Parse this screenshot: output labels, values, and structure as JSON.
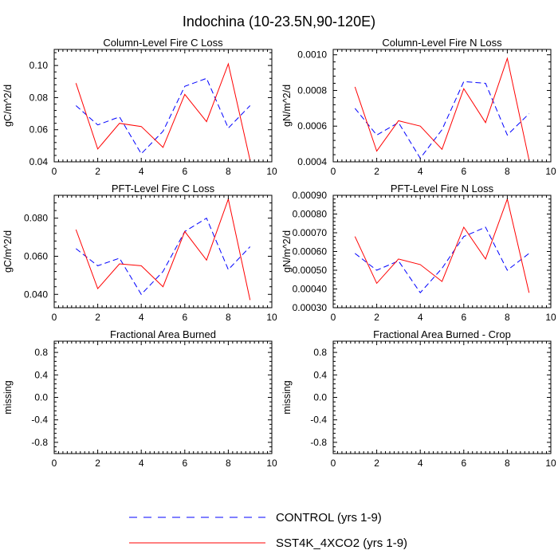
{
  "figure": {
    "title": "Indochina (10-23.5N,90-120E)",
    "colors": {
      "control": "#0000ff",
      "sst4k": "#ff0000",
      "axes": "#000000"
    }
  },
  "legend": [
    {
      "label": "CONTROL (yrs 1-9)",
      "color": "#0000ff",
      "style": "dashed",
      "series": "control"
    },
    {
      "label": "SST4K_4XCO2 (yrs 1-9)",
      "color": "#ff0000",
      "style": "solid",
      "series": "sst4k"
    }
  ],
  "chart_data": [
    {
      "type": "line",
      "title": "Column-Level Fire C Loss",
      "xlabel": "",
      "ylabel": "gC/m^2/d",
      "xlim": [
        0,
        10
      ],
      "ylim": [
        0.04,
        0.11
      ],
      "xticks": [
        0,
        2,
        4,
        6,
        8,
        10
      ],
      "xtick_labels": [
        "0",
        "2",
        "4",
        "6",
        "8",
        "10"
      ],
      "yticks": [
        0.04,
        0.06,
        0.08,
        0.1
      ],
      "ytick_labels": [
        "0.04",
        "0.06",
        "0.08",
        "0.10"
      ],
      "x": [
        1,
        2,
        3,
        4,
        5,
        6,
        7,
        8,
        9
      ],
      "series": [
        {
          "name": "CONTROL (yrs 1-9)",
          "key": "control",
          "values": [
            0.075,
            0.063,
            0.068,
            0.045,
            0.059,
            0.087,
            0.092,
            0.061,
            0.075
          ]
        },
        {
          "name": "SST4K_4XCO2 (yrs 1-9)",
          "key": "sst4k",
          "values": [
            0.089,
            0.048,
            0.064,
            0.062,
            0.049,
            0.082,
            0.065,
            0.101,
            0.041
          ]
        }
      ]
    },
    {
      "type": "line",
      "title": "Column-Level Fire N Loss",
      "xlabel": "",
      "ylabel": "gN/m^2/d",
      "xlim": [
        0,
        10
      ],
      "ylim": [
        0.0004,
        0.00103
      ],
      "xticks": [
        0,
        2,
        4,
        6,
        8,
        10
      ],
      "xtick_labels": [
        "0",
        "2",
        "4",
        "6",
        "8",
        "10"
      ],
      "yticks": [
        0.0004,
        0.0006,
        0.0008,
        0.001
      ],
      "ytick_labels": [
        "0.0004",
        "0.0006",
        "0.0008",
        "0.0010"
      ],
      "x": [
        1,
        2,
        3,
        4,
        5,
        6,
        7,
        8,
        9
      ],
      "series": [
        {
          "name": "CONTROL (yrs 1-9)",
          "key": "control",
          "values": [
            0.0007,
            0.00055,
            0.00062,
            0.00042,
            0.00058,
            0.00085,
            0.00084,
            0.00055,
            0.00067
          ]
        },
        {
          "name": "SST4K_4XCO2 (yrs 1-9)",
          "key": "sst4k",
          "values": [
            0.00082,
            0.00046,
            0.00063,
            0.0006,
            0.00047,
            0.00081,
            0.00062,
            0.00098,
            0.00041
          ]
        }
      ]
    },
    {
      "type": "line",
      "title": "PFT-Level Fire C Loss",
      "xlabel": "",
      "ylabel": "gC/m^2/d",
      "xlim": [
        0,
        10
      ],
      "ylim": [
        0.033,
        0.092
      ],
      "xticks": [
        0,
        2,
        4,
        6,
        8,
        10
      ],
      "xtick_labels": [
        "0",
        "2",
        "4",
        "6",
        "8",
        "10"
      ],
      "yticks": [
        0.04,
        0.06,
        0.08
      ],
      "ytick_labels": [
        "0.040",
        "0.060",
        "0.080"
      ],
      "x": [
        1,
        2,
        3,
        4,
        5,
        6,
        7,
        8,
        9
      ],
      "series": [
        {
          "name": "CONTROL (yrs 1-9)",
          "key": "control",
          "values": [
            0.064,
            0.055,
            0.059,
            0.04,
            0.052,
            0.073,
            0.08,
            0.053,
            0.065
          ]
        },
        {
          "name": "SST4K_4XCO2 (yrs 1-9)",
          "key": "sst4k",
          "values": [
            0.074,
            0.043,
            0.056,
            0.055,
            0.044,
            0.073,
            0.058,
            0.09,
            0.037
          ]
        }
      ]
    },
    {
      "type": "line",
      "title": "PFT-Level Fire N Loss",
      "xlabel": "",
      "ylabel": "gN/m^2/d",
      "xlim": [
        0,
        10
      ],
      "ylim": [
        0.0003,
        0.0009
      ],
      "xticks": [
        0,
        2,
        4,
        6,
        8,
        10
      ],
      "xtick_labels": [
        "0",
        "2",
        "4",
        "6",
        "8",
        "10"
      ],
      "yticks": [
        0.0003,
        0.0004,
        0.0005,
        0.0006,
        0.0007,
        0.0008,
        0.0009
      ],
      "ytick_labels": [
        "0.00030",
        "0.00040",
        "0.00050",
        "0.00060",
        "0.00070",
        "0.00080",
        "0.00090"
      ],
      "x": [
        1,
        2,
        3,
        4,
        5,
        6,
        7,
        8,
        9
      ],
      "series": [
        {
          "name": "CONTROL (yrs 1-9)",
          "key": "control",
          "values": [
            0.00059,
            0.0005,
            0.00055,
            0.00038,
            0.00051,
            0.00068,
            0.00073,
            0.0005,
            0.00059
          ]
        },
        {
          "name": "SST4K_4XCO2 (yrs 1-9)",
          "key": "sst4k",
          "values": [
            0.00068,
            0.00043,
            0.00056,
            0.00053,
            0.00044,
            0.00073,
            0.00056,
            0.00088,
            0.00038
          ]
        }
      ]
    },
    {
      "type": "line",
      "title": "Fractional Area Burned",
      "xlabel": "",
      "ylabel": "missing",
      "xlim": [
        0,
        10
      ],
      "ylim": [
        -1,
        1
      ],
      "xticks": [
        0,
        2,
        4,
        6,
        8,
        10
      ],
      "xtick_labels": [
        "0",
        "2",
        "4",
        "6",
        "8",
        "10"
      ],
      "yticks": [
        -0.8,
        -0.4,
        0,
        0.4,
        0.8
      ],
      "ytick_labels": [
        "-0.8",
        "-0.4",
        "0.0",
        "0.4",
        "0.8"
      ],
      "x": [],
      "series": []
    },
    {
      "type": "line",
      "title": "Fractional Area Burned - Crop",
      "xlabel": "",
      "ylabel": "missing",
      "xlim": [
        0,
        10
      ],
      "ylim": [
        -1,
        1
      ],
      "xticks": [
        0,
        2,
        4,
        6,
        8,
        10
      ],
      "xtick_labels": [
        "0",
        "2",
        "4",
        "6",
        "8",
        "10"
      ],
      "yticks": [
        -0.8,
        -0.4,
        0,
        0.4,
        0.8
      ],
      "ytick_labels": [
        "-0.8",
        "-0.4",
        "0.0",
        "0.4",
        "0.8"
      ],
      "x": [],
      "series": []
    }
  ]
}
